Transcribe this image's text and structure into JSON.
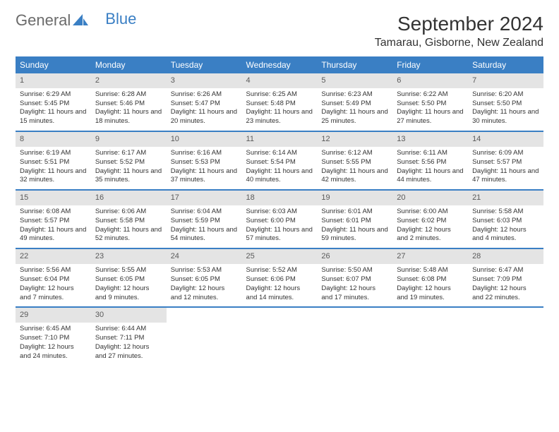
{
  "logo": {
    "part1": "General",
    "part2": "Blue"
  },
  "title": "September 2024",
  "location": "Tamarau, Gisborne, New Zealand",
  "colors": {
    "header_bg": "#3a7fc4",
    "header_text": "#ffffff",
    "daynum_bg": "#e4e4e4",
    "daynum_text": "#5a5a5a",
    "body_text": "#333333",
    "logo_gray": "#6b6b6b",
    "logo_blue": "#3a7fc4",
    "row_border": "#3a7fc4"
  },
  "day_headers": [
    "Sunday",
    "Monday",
    "Tuesday",
    "Wednesday",
    "Thursday",
    "Friday",
    "Saturday"
  ],
  "weeks": [
    [
      {
        "num": "1",
        "sunrise": "Sunrise: 6:29 AM",
        "sunset": "Sunset: 5:45 PM",
        "daylight": "Daylight: 11 hours and 15 minutes."
      },
      {
        "num": "2",
        "sunrise": "Sunrise: 6:28 AM",
        "sunset": "Sunset: 5:46 PM",
        "daylight": "Daylight: 11 hours and 18 minutes."
      },
      {
        "num": "3",
        "sunrise": "Sunrise: 6:26 AM",
        "sunset": "Sunset: 5:47 PM",
        "daylight": "Daylight: 11 hours and 20 minutes."
      },
      {
        "num": "4",
        "sunrise": "Sunrise: 6:25 AM",
        "sunset": "Sunset: 5:48 PM",
        "daylight": "Daylight: 11 hours and 23 minutes."
      },
      {
        "num": "5",
        "sunrise": "Sunrise: 6:23 AM",
        "sunset": "Sunset: 5:49 PM",
        "daylight": "Daylight: 11 hours and 25 minutes."
      },
      {
        "num": "6",
        "sunrise": "Sunrise: 6:22 AM",
        "sunset": "Sunset: 5:50 PM",
        "daylight": "Daylight: 11 hours and 27 minutes."
      },
      {
        "num": "7",
        "sunrise": "Sunrise: 6:20 AM",
        "sunset": "Sunset: 5:50 PM",
        "daylight": "Daylight: 11 hours and 30 minutes."
      }
    ],
    [
      {
        "num": "8",
        "sunrise": "Sunrise: 6:19 AM",
        "sunset": "Sunset: 5:51 PM",
        "daylight": "Daylight: 11 hours and 32 minutes."
      },
      {
        "num": "9",
        "sunrise": "Sunrise: 6:17 AM",
        "sunset": "Sunset: 5:52 PM",
        "daylight": "Daylight: 11 hours and 35 minutes."
      },
      {
        "num": "10",
        "sunrise": "Sunrise: 6:16 AM",
        "sunset": "Sunset: 5:53 PM",
        "daylight": "Daylight: 11 hours and 37 minutes."
      },
      {
        "num": "11",
        "sunrise": "Sunrise: 6:14 AM",
        "sunset": "Sunset: 5:54 PM",
        "daylight": "Daylight: 11 hours and 40 minutes."
      },
      {
        "num": "12",
        "sunrise": "Sunrise: 6:12 AM",
        "sunset": "Sunset: 5:55 PM",
        "daylight": "Daylight: 11 hours and 42 minutes."
      },
      {
        "num": "13",
        "sunrise": "Sunrise: 6:11 AM",
        "sunset": "Sunset: 5:56 PM",
        "daylight": "Daylight: 11 hours and 44 minutes."
      },
      {
        "num": "14",
        "sunrise": "Sunrise: 6:09 AM",
        "sunset": "Sunset: 5:57 PM",
        "daylight": "Daylight: 11 hours and 47 minutes."
      }
    ],
    [
      {
        "num": "15",
        "sunrise": "Sunrise: 6:08 AM",
        "sunset": "Sunset: 5:57 PM",
        "daylight": "Daylight: 11 hours and 49 minutes."
      },
      {
        "num": "16",
        "sunrise": "Sunrise: 6:06 AM",
        "sunset": "Sunset: 5:58 PM",
        "daylight": "Daylight: 11 hours and 52 minutes."
      },
      {
        "num": "17",
        "sunrise": "Sunrise: 6:04 AM",
        "sunset": "Sunset: 5:59 PM",
        "daylight": "Daylight: 11 hours and 54 minutes."
      },
      {
        "num": "18",
        "sunrise": "Sunrise: 6:03 AM",
        "sunset": "Sunset: 6:00 PM",
        "daylight": "Daylight: 11 hours and 57 minutes."
      },
      {
        "num": "19",
        "sunrise": "Sunrise: 6:01 AM",
        "sunset": "Sunset: 6:01 PM",
        "daylight": "Daylight: 11 hours and 59 minutes."
      },
      {
        "num": "20",
        "sunrise": "Sunrise: 6:00 AM",
        "sunset": "Sunset: 6:02 PM",
        "daylight": "Daylight: 12 hours and 2 minutes."
      },
      {
        "num": "21",
        "sunrise": "Sunrise: 5:58 AM",
        "sunset": "Sunset: 6:03 PM",
        "daylight": "Daylight: 12 hours and 4 minutes."
      }
    ],
    [
      {
        "num": "22",
        "sunrise": "Sunrise: 5:56 AM",
        "sunset": "Sunset: 6:04 PM",
        "daylight": "Daylight: 12 hours and 7 minutes."
      },
      {
        "num": "23",
        "sunrise": "Sunrise: 5:55 AM",
        "sunset": "Sunset: 6:05 PM",
        "daylight": "Daylight: 12 hours and 9 minutes."
      },
      {
        "num": "24",
        "sunrise": "Sunrise: 5:53 AM",
        "sunset": "Sunset: 6:05 PM",
        "daylight": "Daylight: 12 hours and 12 minutes."
      },
      {
        "num": "25",
        "sunrise": "Sunrise: 5:52 AM",
        "sunset": "Sunset: 6:06 PM",
        "daylight": "Daylight: 12 hours and 14 minutes."
      },
      {
        "num": "26",
        "sunrise": "Sunrise: 5:50 AM",
        "sunset": "Sunset: 6:07 PM",
        "daylight": "Daylight: 12 hours and 17 minutes."
      },
      {
        "num": "27",
        "sunrise": "Sunrise: 5:48 AM",
        "sunset": "Sunset: 6:08 PM",
        "daylight": "Daylight: 12 hours and 19 minutes."
      },
      {
        "num": "28",
        "sunrise": "Sunrise: 6:47 AM",
        "sunset": "Sunset: 7:09 PM",
        "daylight": "Daylight: 12 hours and 22 minutes."
      }
    ],
    [
      {
        "num": "29",
        "sunrise": "Sunrise: 6:45 AM",
        "sunset": "Sunset: 7:10 PM",
        "daylight": "Daylight: 12 hours and 24 minutes."
      },
      {
        "num": "30",
        "sunrise": "Sunrise: 6:44 AM",
        "sunset": "Sunset: 7:11 PM",
        "daylight": "Daylight: 12 hours and 27 minutes."
      },
      {
        "empty": true
      },
      {
        "empty": true
      },
      {
        "empty": true
      },
      {
        "empty": true
      },
      {
        "empty": true
      }
    ]
  ]
}
